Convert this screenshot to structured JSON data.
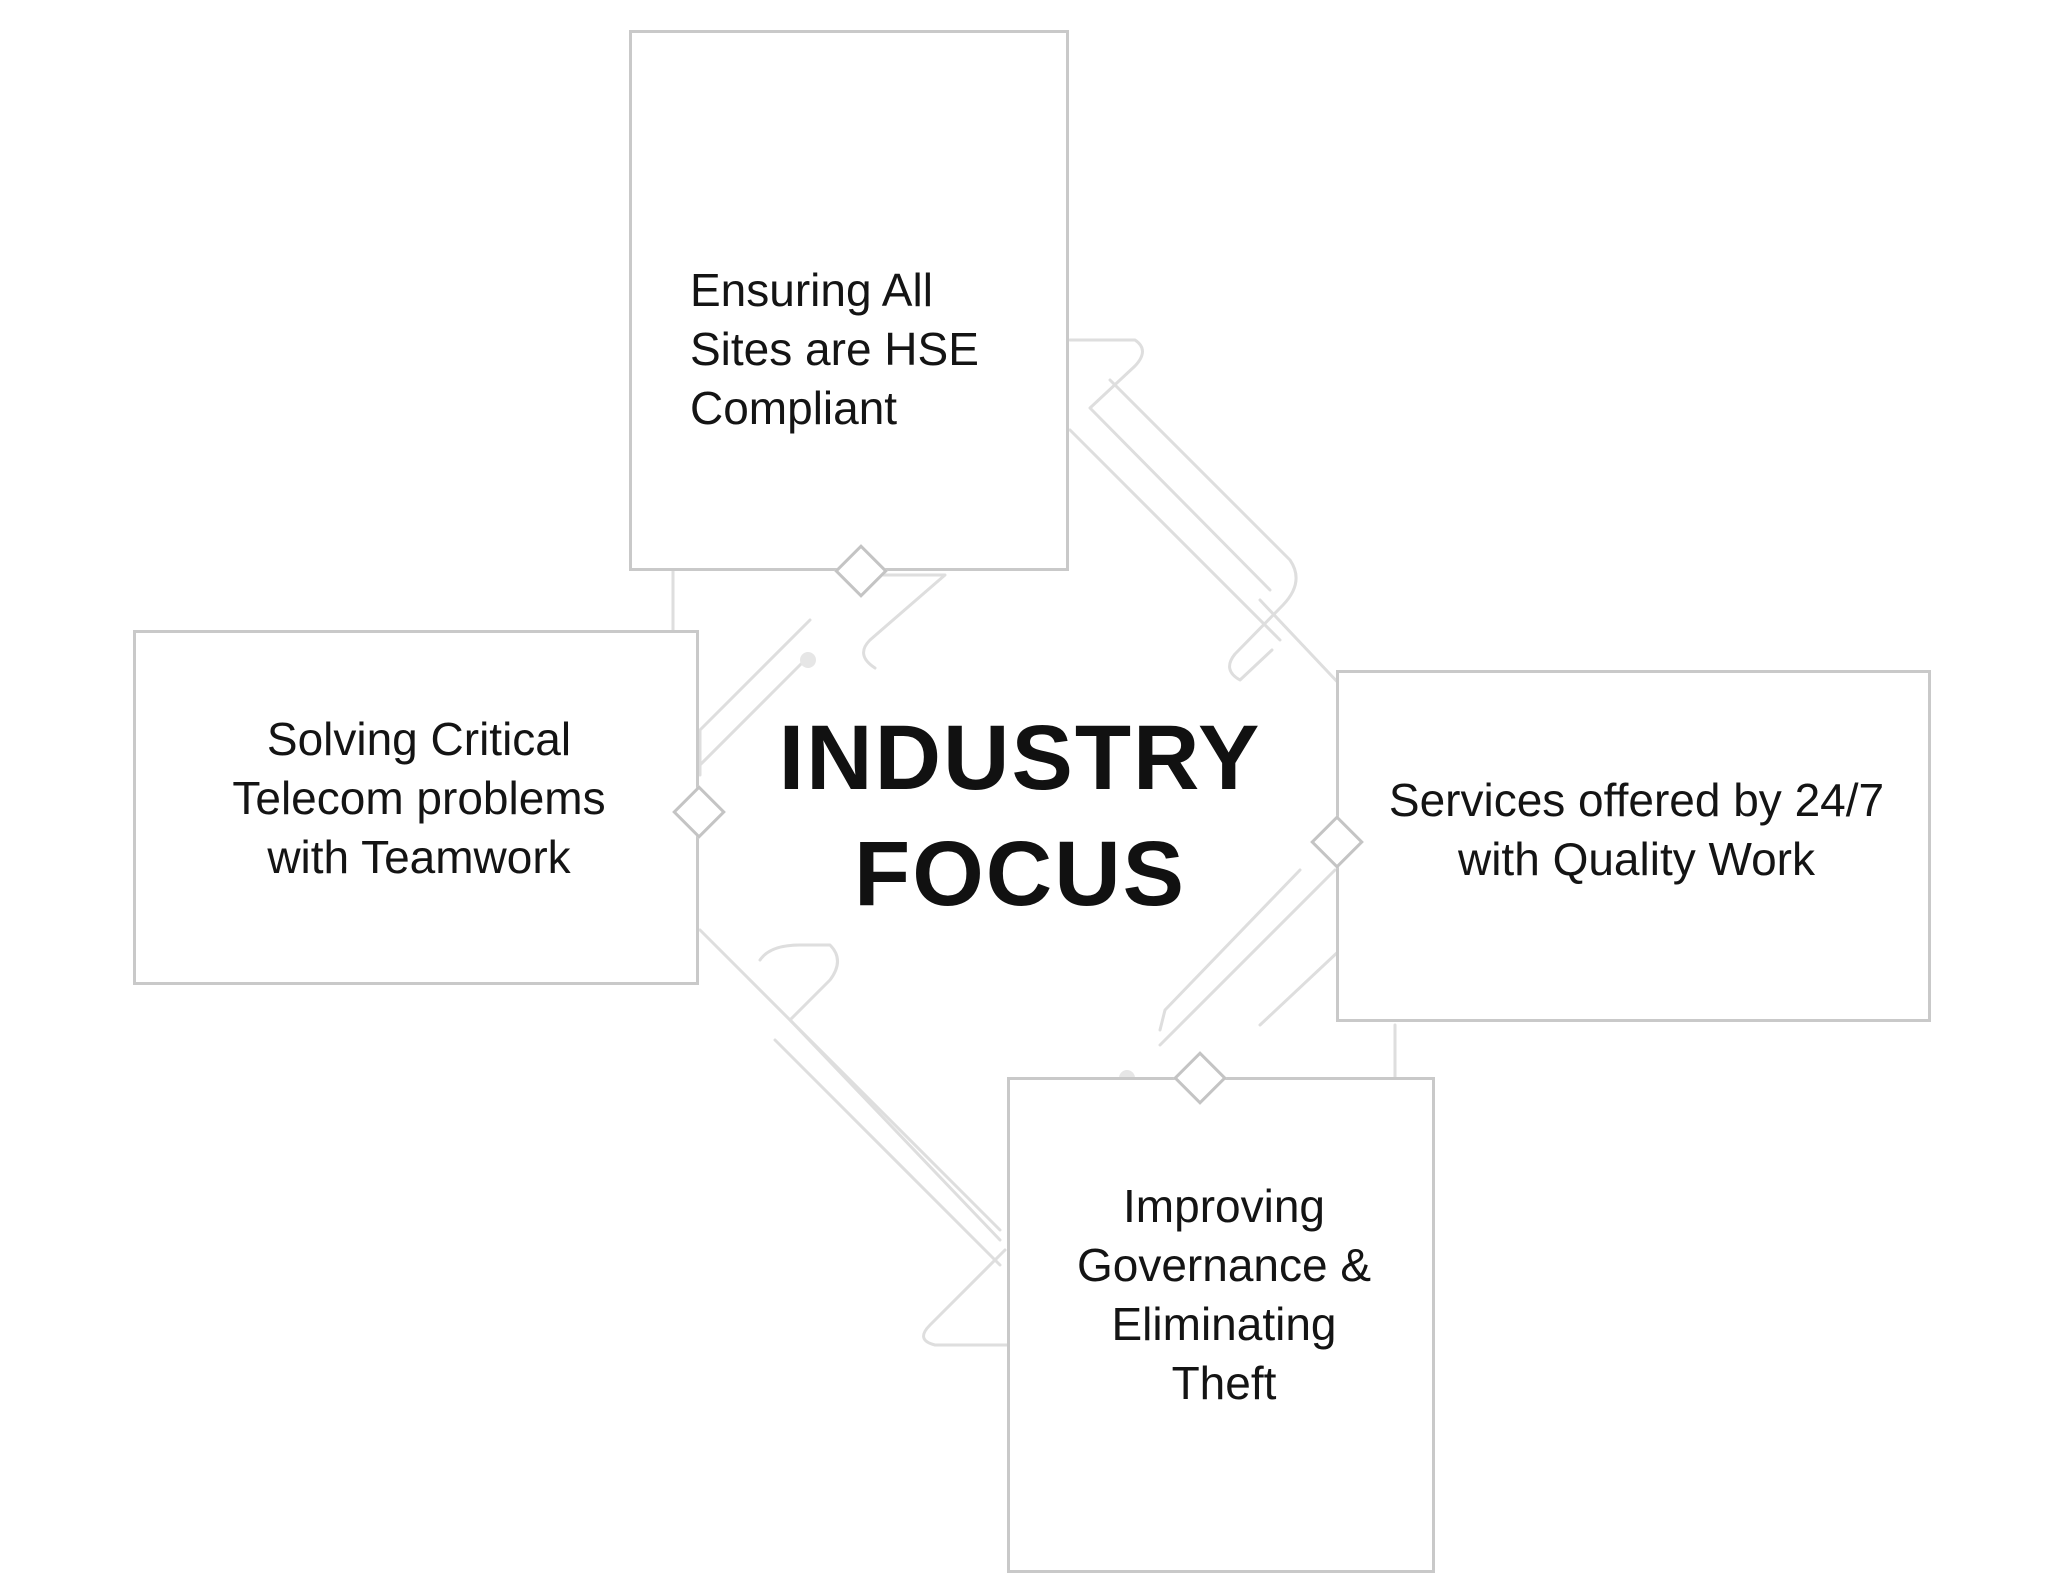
{
  "center": {
    "line1": "INDUSTRY",
    "line2": "FOCUS"
  },
  "cards": {
    "top": "Ensuring All\nSites are HSE\nCompliant",
    "left": "Solving Critical\nTelecom problems\nwith Teamwork",
    "right": "Services offered by 24/7\nwith Quality Work",
    "bottom": "Improving\nGovernance &\nEliminating\nTheft"
  },
  "colors": {
    "border": "#c9c9c9",
    "connector": "#dcdcdc",
    "text": "#141414"
  }
}
